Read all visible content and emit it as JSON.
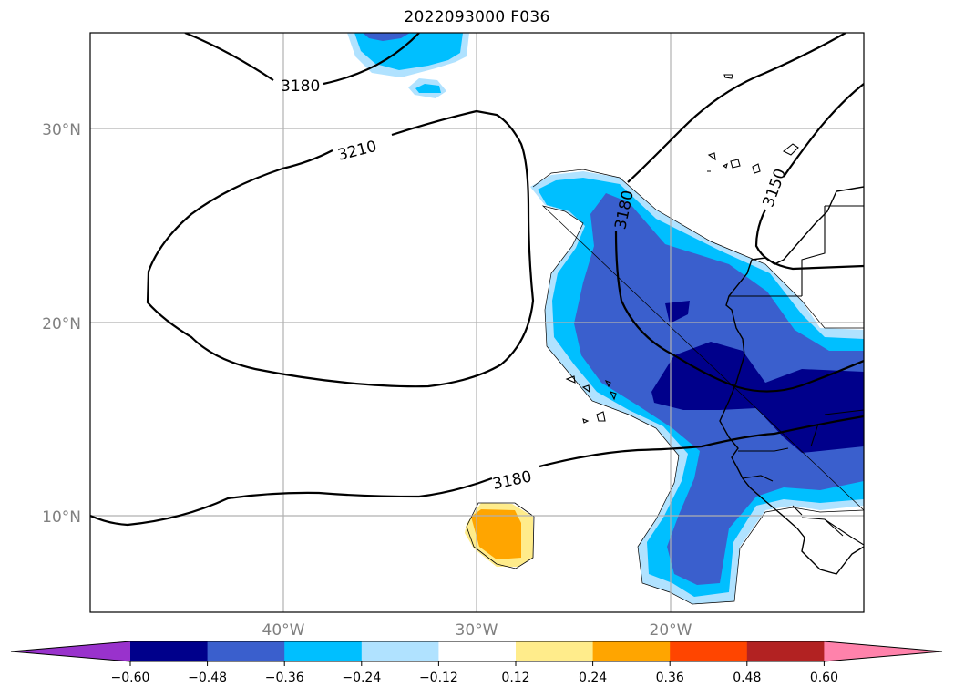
{
  "title": "2022093000 F036",
  "map": {
    "lon_range": [
      -50,
      -10
    ],
    "lat_range": [
      5,
      35
    ],
    "lat_ticks": [
      "30°N",
      "20°N",
      "10°N"
    ],
    "lon_ticks": [
      "40°W",
      "30°W",
      "20°W"
    ],
    "contours": [
      {
        "value": "3180"
      },
      {
        "value": "3210"
      },
      {
        "value": "3180"
      },
      {
        "value": "3180"
      },
      {
        "value": "3150"
      }
    ]
  },
  "colorbar": {
    "ticks": [
      "−0.60",
      "−0.48",
      "−0.36",
      "−0.24",
      "−0.12",
      "0.12",
      "0.24",
      "0.36",
      "0.48",
      "0.60"
    ],
    "colors": [
      "#9932cc",
      "#00008b",
      "#3a5fcd",
      "#00bfff",
      "#b0e2ff",
      "#ffffff",
      "#ffec8b",
      "#ffa500",
      "#ff4500",
      "#b22222",
      "#ff82ab"
    ]
  }
}
